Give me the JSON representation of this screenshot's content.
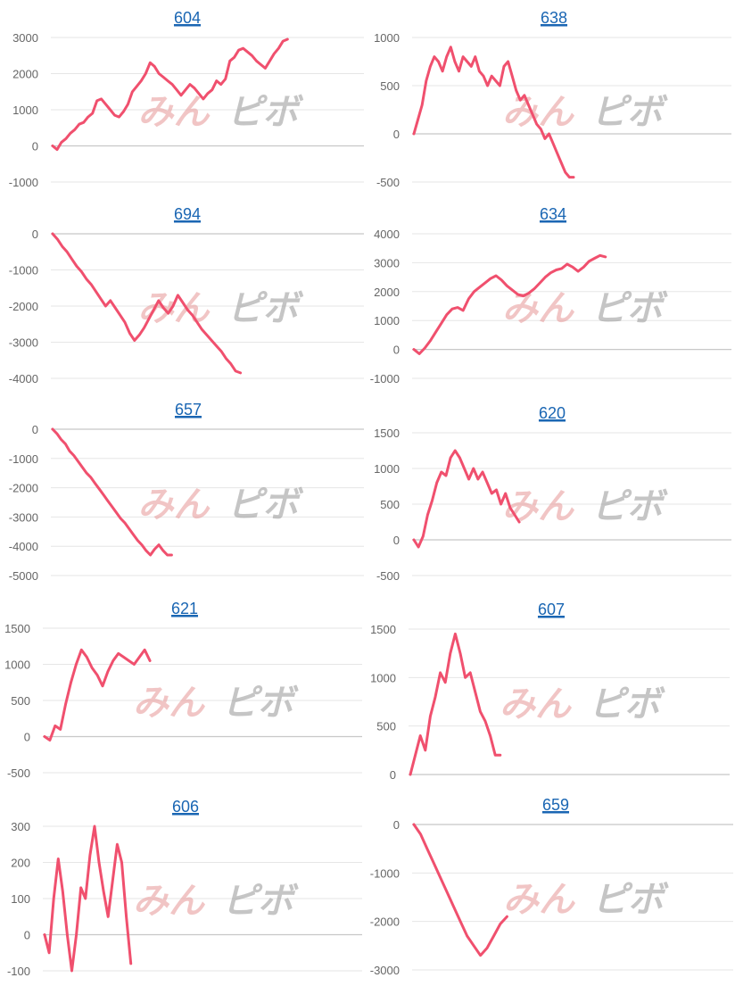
{
  "watermark": {
    "part1": "みん",
    "part2": "ピボ"
  },
  "colors": {
    "line": "#f0506e",
    "title_link": "#1a66b3",
    "grid": "#e6e6e6"
  },
  "chart_data": [
    {
      "type": "line",
      "title": "604",
      "yticks": [
        3000,
        2000,
        1000,
        0,
        -1000
      ],
      "ylim": [
        -1000,
        3000
      ],
      "x": [
        0,
        1,
        2,
        3,
        4,
        5,
        6,
        7,
        8,
        9,
        10,
        11,
        12,
        13,
        14,
        15,
        16,
        17,
        18,
        19,
        20,
        21,
        22,
        23,
        24,
        25,
        26,
        27,
        28,
        29,
        30,
        31,
        32,
        33,
        34,
        35,
        36,
        37,
        38,
        39,
        40,
        41,
        42,
        43,
        44,
        45,
        46,
        47,
        48,
        49,
        50,
        51,
        52,
        53,
        54,
        55,
        56,
        57,
        58,
        59,
        60,
        61,
        62,
        63,
        64,
        65,
        66
      ],
      "values": [
        0,
        -100,
        100,
        200,
        350,
        450,
        600,
        650,
        800,
        900,
        1250,
        1300,
        1150,
        1000,
        850,
        800,
        950,
        1150,
        1500,
        1650,
        1800,
        2000,
        2300,
        2200,
        2000,
        1900,
        1800,
        1700,
        1550,
        1400,
        1550,
        1700,
        1600,
        1450,
        1300,
        1450,
        1550,
        1800,
        1700,
        1850,
        2350,
        2450,
        2650,
        2700,
        2600,
        2500,
        2350,
        2250,
        2150,
        2350,
        2550,
        2700,
        2900,
        2950,
        2950,
        2950,
        2950,
        2950,
        2950,
        2950,
        2950,
        2950,
        2950,
        2950,
        2950,
        2950,
        2950
      ]
    },
    {
      "type": "line",
      "title": "638",
      "yticks": [
        1000,
        500,
        0,
        -500
      ],
      "ylim": [
        -500,
        1000
      ],
      "x": [
        0,
        1,
        2,
        3,
        4,
        5,
        6,
        7,
        8,
        9,
        10,
        11,
        12,
        13,
        14,
        15,
        16,
        17,
        18,
        19,
        20,
        21,
        22,
        23,
        24,
        25,
        26,
        27,
        28,
        29,
        30,
        31,
        32,
        33,
        34,
        35,
        36,
        37,
        38,
        39
      ],
      "values": [
        0,
        150,
        300,
        550,
        700,
        800,
        750,
        650,
        800,
        900,
        750,
        650,
        800,
        750,
        700,
        800,
        650,
        600,
        500,
        600,
        550,
        500,
        700,
        750,
        600,
        450,
        350,
        400,
        300,
        200,
        100,
        50,
        -50,
        0,
        -100,
        -200,
        -300,
        -400,
        -450,
        -450
      ]
    },
    {
      "type": "line",
      "title": "694",
      "yticks": [
        0,
        -1000,
        -2000,
        -3000,
        -4000
      ],
      "ylim": [
        -4000,
        0
      ],
      "x": [
        0,
        1,
        2,
        3,
        4,
        5,
        6,
        7,
        8,
        9,
        10,
        11,
        12,
        13,
        14,
        15,
        16,
        17,
        18,
        19,
        20,
        21,
        22,
        23,
        24,
        25,
        26,
        27,
        28,
        29,
        30,
        31,
        32,
        33,
        34,
        35,
        36,
        37,
        38,
        39,
        40
      ],
      "values": [
        0,
        -150,
        -350,
        -500,
        -700,
        -900,
        -1050,
        -1250,
        -1400,
        -1600,
        -1800,
        -2000,
        -1850,
        -2050,
        -2250,
        -2450,
        -2750,
        -2950,
        -2800,
        -2600,
        -2350,
        -2100,
        -1850,
        -2050,
        -2200,
        -2000,
        -1700,
        -1900,
        -2100,
        -2250,
        -2450,
        -2650,
        -2800,
        -2950,
        -3100,
        -3250,
        -3450,
        -3600,
        -3800,
        -3850,
        -3850
      ]
    },
    {
      "type": "line",
      "title": "634",
      "yticks": [
        4000,
        3000,
        2000,
        1000,
        0,
        -1000
      ],
      "ylim": [
        -1000,
        4000
      ],
      "x": [
        0,
        1,
        2,
        3,
        4,
        5,
        6,
        7,
        8,
        9,
        10,
        11,
        12,
        13,
        14,
        15,
        16,
        17,
        18,
        19,
        20,
        21,
        22,
        23,
        24,
        25,
        26,
        27,
        28,
        29,
        30,
        31,
        32,
        33,
        34,
        35,
        36,
        37,
        38,
        39
      ],
      "values": [
        0,
        -150,
        50,
        300,
        600,
        900,
        1200,
        1400,
        1450,
        1350,
        1750,
        2000,
        2150,
        2300,
        2450,
        2550,
        2400,
        2200,
        2050,
        1900,
        1850,
        1950,
        2100,
        2300,
        2500,
        2650,
        2750,
        2800,
        2950,
        2850,
        2700,
        2850,
        3050,
        3150,
        3250,
        3200,
        3200,
        3200,
        3200,
        3200
      ]
    },
    {
      "type": "line",
      "title": "657",
      "yticks": [
        0,
        -1000,
        -2000,
        -3000,
        -4000,
        -5000
      ],
      "ylim": [
        -5000,
        0
      ],
      "x": [
        0,
        1,
        2,
        3,
        4,
        5,
        6,
        7,
        8,
        9,
        10,
        11,
        12,
        13,
        14,
        15,
        16,
        17,
        18,
        19,
        20,
        21,
        22,
        23,
        24,
        25,
        26,
        27,
        28,
        29,
        30,
        31,
        32,
        33,
        34,
        35,
        36
      ],
      "values": [
        0,
        -150,
        -350,
        -500,
        -750,
        -900,
        -1100,
        -1300,
        -1500,
        -1650,
        -1850,
        -2050,
        -2250,
        -2450,
        -2650,
        -2850,
        -3050,
        -3200,
        -3400,
        -3600,
        -3800,
        -3950,
        -4150,
        -4300,
        -4100,
        -3950,
        -4150,
        -4300,
        -4300,
        -4300,
        -4300,
        -4300,
        -4300,
        -4300,
        -4300,
        -4300,
        -4300
      ]
    },
    {
      "type": "line",
      "title": "620",
      "yticks": [
        1500,
        1000,
        500,
        0,
        -500
      ],
      "ylim": [
        -500,
        1500
      ],
      "x": [
        0,
        1,
        2,
        3,
        4,
        5,
        6,
        7,
        8,
        9,
        10,
        11,
        12,
        13,
        14,
        15,
        16,
        17,
        18,
        19,
        20,
        21,
        22,
        23,
        24,
        25,
        26,
        27,
        28,
        29,
        30,
        31,
        32,
        33,
        34,
        35,
        36,
        37,
        38,
        39
      ],
      "values": [
        0,
        -100,
        50,
        350,
        550,
        800,
        950,
        900,
        1150,
        1250,
        1150,
        1000,
        850,
        1000,
        850,
        950,
        800,
        650,
        700,
        500,
        650,
        450,
        350,
        250,
        250,
        250,
        250,
        250,
        250,
        250,
        250,
        250,
        250,
        250,
        250,
        250,
        250,
        250,
        250,
        250
      ]
    },
    {
      "type": "line",
      "title": "621",
      "yticks": [
        1500,
        1000,
        500,
        0,
        -500
      ],
      "ylim": [
        -500,
        1500
      ],
      "x": [
        0,
        1,
        2,
        3,
        4,
        5,
        6,
        7,
        8,
        9,
        10,
        11,
        12,
        13,
        14,
        15,
        16,
        17,
        18,
        19,
        20,
        21,
        22,
        23,
        24,
        25,
        26,
        27,
        28,
        29
      ],
      "values": [
        0,
        -50,
        150,
        100,
        450,
        750,
        1000,
        1200,
        1100,
        950,
        850,
        700,
        900,
        1050,
        1150,
        1100,
        1050,
        1000,
        1100,
        1200,
        1050,
        1000,
        1000,
        1000,
        1000,
        1000,
        1000,
        1000,
        1000,
        1000
      ]
    },
    {
      "type": "line",
      "title": "607",
      "yticks": [
        1500,
        1000,
        500,
        0
      ],
      "ylim": [
        0,
        1500
      ],
      "x": [
        0,
        1,
        2,
        3,
        4,
        5,
        6,
        7,
        8,
        9,
        10,
        11,
        12,
        13,
        14,
        15,
        16,
        17,
        18,
        19,
        20,
        21,
        22,
        23,
        24,
        25,
        26,
        27,
        28,
        29,
        30,
        31,
        32,
        33,
        34,
        35,
        36,
        37,
        38,
        39
      ],
      "values": [
        0,
        200,
        400,
        250,
        600,
        800,
        1050,
        950,
        1250,
        1450,
        1250,
        1000,
        1050,
        850,
        650,
        550,
        400,
        200,
        200,
        200,
        200,
        200,
        200,
        200,
        200,
        200,
        200,
        200,
        200,
        200,
        200,
        200,
        200,
        200,
        200,
        200,
        200,
        200,
        200,
        200
      ]
    },
    {
      "type": "line",
      "title": "606",
      "yticks": [
        300,
        200,
        100,
        0,
        -100
      ],
      "ylim": [
        -100,
        300
      ],
      "x": [
        0,
        1,
        2,
        3,
        4,
        5,
        6,
        7,
        8,
        9,
        10,
        11,
        12,
        13,
        14,
        15,
        16,
        17,
        18,
        19,
        20,
        21,
        22,
        23,
        24,
        25,
        26,
        27,
        28,
        29,
        30,
        31,
        32,
        33,
        34,
        35,
        36,
        37,
        38,
        39
      ],
      "values": [
        0,
        -50,
        100,
        210,
        120,
        0,
        -100,
        0,
        130,
        100,
        220,
        300,
        200,
        120,
        50,
        150,
        250,
        200,
        50,
        -80,
        -80,
        -80,
        -80,
        -80,
        -80,
        -80,
        -80,
        -80,
        -80,
        -80,
        -80,
        -80,
        -80,
        -80,
        -80,
        -80,
        -80,
        -80,
        -80,
        -80
      ]
    },
    {
      "type": "line",
      "title": "659",
      "yticks": [
        0,
        -1000,
        -2000,
        -3000
      ],
      "ylim": [
        -3000,
        0
      ],
      "x": [
        0,
        1,
        2,
        3,
        4,
        5,
        6,
        7,
        8,
        9,
        10,
        11,
        12,
        13,
        14,
        15,
        16,
        17,
        18,
        19,
        20,
        21,
        22,
        23,
        24,
        25,
        26,
        27,
        28,
        29,
        30,
        31,
        32,
        33,
        34,
        35,
        36,
        37,
        38,
        39
      ],
      "values": [
        0,
        -200,
        -500,
        -800,
        -1100,
        -1400,
        -1700,
        -2000,
        -2300,
        -2500,
        -2700,
        -2550,
        -2300,
        -2050,
        -1900,
        -1950,
        -1950,
        -1950,
        -1950,
        -1950,
        -1950,
        -1950,
        -1950,
        -1950,
        -1950,
        -1950,
        -1950,
        -1950,
        -1950,
        -1950,
        -1950,
        -1950,
        -1950,
        -1950,
        -1950,
        -1950,
        -1950,
        -1950,
        -1950,
        -1950
      ]
    }
  ]
}
